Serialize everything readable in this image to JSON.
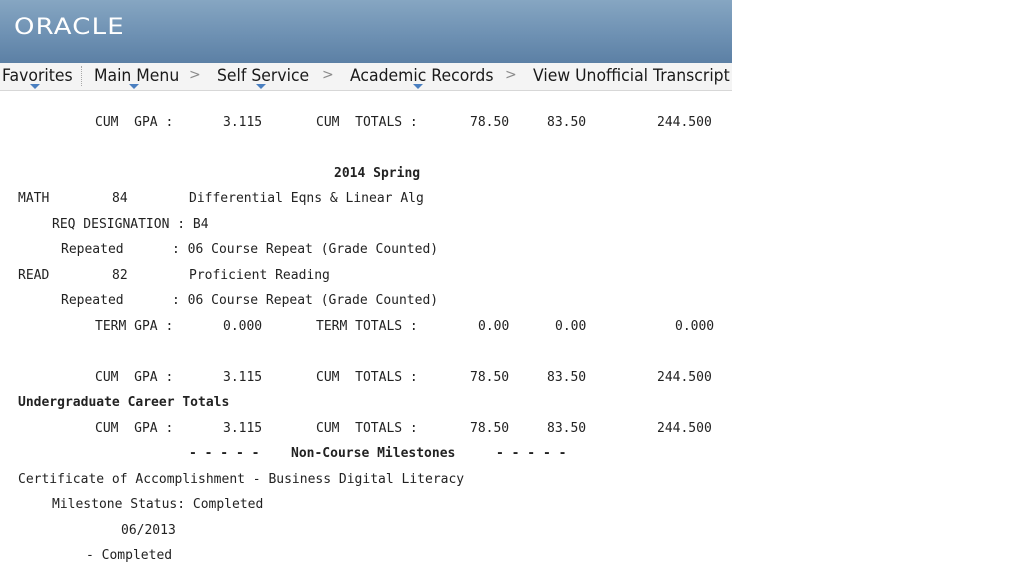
{
  "header": {
    "logo_text": "ORACLE"
  },
  "nav": {
    "favorites": "Favorites",
    "main_menu": "Main Menu",
    "self_service": "Self Service",
    "academic_records": "Academic Records",
    "view_transcript": "View Unofficial Transcript",
    "chevron": ">",
    "arrow_color": "#4a7fc0"
  },
  "transcript": {
    "cum1": {
      "label": "CUM  GPA :",
      "gpa": "3.115",
      "totals_label": "CUM  TOTALS :",
      "v1": "78.50",
      "v2": "83.50",
      "v3": "244.500"
    },
    "term_heading": "2014 Spring",
    "course1": {
      "subject": "MATH",
      "number": "84",
      "title": "Differential Eqns & Linear Alg"
    },
    "course1_req": "REQ DESIGNATION : B4",
    "course1_rep_label": "Repeated",
    "course1_rep_value": ": 06 Course Repeat (Grade Counted)",
    "course2": {
      "subject": "READ",
      "number": "82",
      "title": "Proficient Reading"
    },
    "course2_rep_label": "Repeated",
    "course2_rep_value": ": 06 Course Repeat (Grade Counted)",
    "term": {
      "label": "TERM GPA :",
      "gpa": "0.000",
      "totals_label": "TERM TOTALS :",
      "v1": "0.00",
      "v2": "0.00",
      "v3": "0.000"
    },
    "cum2": {
      "label": "CUM  GPA :",
      "gpa": "3.115",
      "totals_label": "CUM  TOTALS :",
      "v1": "78.50",
      "v2": "83.50",
      "v3": "244.500"
    },
    "career_heading": "Undergraduate Career Totals",
    "cum3": {
      "label": "CUM  GPA :",
      "gpa": "3.115",
      "totals_label": "CUM  TOTALS :",
      "v1": "78.50",
      "v2": "83.50",
      "v3": "244.500"
    },
    "milestones_dashes_left": "- - - - -",
    "milestones_heading": "Non-Course Milestones",
    "milestones_dashes_right": "- - - - -",
    "certificate": "Certificate of Accomplishment - Business Digital Literacy",
    "milestone_status": "Milestone Status: Completed",
    "milestone_date": "06/2013",
    "milestone_completed": "- Completed"
  }
}
